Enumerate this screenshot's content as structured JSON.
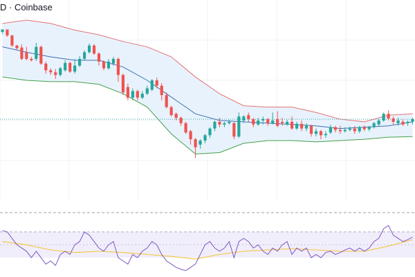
{
  "header": {
    "title_text": "D · Coinbase"
  },
  "colors": {
    "up": "#26a69a",
    "down": "#ef5350",
    "bb_upper": "#e57373",
    "bb_lower": "#43a047",
    "bb_basis": "#3f6fb0",
    "bb_fill": "#e8f2fd",
    "rsi_line": "#7e57c2",
    "rsi_ma": "#f2c94c",
    "rsi_band_fill": "#f1eefb",
    "grid": "#eef0f3"
  },
  "chart_data": [
    {
      "type": "candlestick",
      "title": "",
      "y_range": [
        0,
        300
      ],
      "candles": [
        [
          0,
          252,
          256,
          251,
          249
        ],
        [
          1,
          256,
          247,
          249,
          245
        ],
        [
          2,
          247,
          232,
          248,
          230
        ],
        [
          3,
          232,
          228,
          233,
          226
        ],
        [
          4,
          229,
          212,
          234,
          210
        ],
        [
          5,
          222,
          212,
          230,
          210
        ],
        [
          6,
          212,
          210,
          215,
          208
        ],
        [
          7,
          212,
          230,
          236,
          209
        ],
        [
          8,
          230,
          205,
          232,
          203
        ],
        [
          9,
          205,
          195,
          208,
          190
        ],
        [
          10,
          195,
          192,
          198,
          188
        ],
        [
          11,
          192,
          188,
          197,
          182
        ],
        [
          12,
          188,
          198,
          200,
          186
        ],
        [
          13,
          195,
          206,
          210,
          193
        ],
        [
          14,
          206,
          193,
          208,
          191
        ],
        [
          15,
          193,
          202,
          212,
          190
        ],
        [
          16,
          202,
          212,
          216,
          200
        ],
        [
          17,
          212,
          222,
          225,
          210
        ],
        [
          18,
          222,
          232,
          235,
          220
        ],
        [
          19,
          232,
          220,
          234,
          218
        ],
        [
          20,
          220,
          208,
          222,
          202
        ],
        [
          21,
          208,
          198,
          210,
          195
        ],
        [
          22,
          198,
          208,
          212,
          196
        ],
        [
          23,
          205,
          212,
          215,
          202
        ],
        [
          24,
          212,
          188,
          214,
          178
        ],
        [
          25,
          188,
          162,
          190,
          158
        ],
        [
          26,
          170,
          154,
          175,
          150
        ],
        [
          27,
          154,
          164,
          168,
          150
        ],
        [
          28,
          164,
          154,
          166,
          150
        ],
        [
          29,
          154,
          160,
          164,
          152
        ],
        [
          30,
          160,
          168,
          172,
          158
        ],
        [
          31,
          166,
          180,
          182,
          164
        ],
        [
          32,
          180,
          172,
          184,
          168
        ],
        [
          33,
          172,
          158,
          176,
          150
        ],
        [
          34,
          158,
          140,
          162,
          138
        ],
        [
          35,
          140,
          128,
          142,
          126
        ],
        [
          36,
          130,
          124,
          132,
          120
        ],
        [
          37,
          124,
          116,
          126,
          112
        ],
        [
          38,
          116,
          102,
          118,
          100
        ],
        [
          39,
          104,
          92,
          106,
          84
        ],
        [
          40,
          92,
          80,
          94,
          64
        ],
        [
          41,
          84,
          90,
          92,
          78
        ],
        [
          42,
          90,
          98,
          100,
          86
        ],
        [
          43,
          98,
          108,
          110,
          94
        ],
        [
          44,
          108,
          118,
          120,
          104
        ],
        [
          45,
          118,
          114,
          124,
          110
        ],
        [
          46,
          114,
          116,
          118,
          110
        ],
        [
          47,
          116,
          118,
          121,
          114
        ],
        [
          48,
          116,
          96,
          118,
          92
        ],
        [
          49,
          96,
          126,
          132,
          94
        ],
        [
          50,
          120,
          126,
          128,
          116
        ],
        [
          51,
          128,
          122,
          132,
          118
        ],
        [
          52,
          122,
          114,
          124,
          110
        ],
        [
          53,
          114,
          120,
          124,
          112
        ],
        [
          54,
          120,
          122,
          126,
          114
        ],
        [
          55,
          122,
          116,
          124,
          112
        ],
        [
          56,
          116,
          120,
          132,
          114
        ],
        [
          57,
          122,
          112,
          134,
          110
        ],
        [
          58,
          118,
          116,
          124,
          112
        ],
        [
          59,
          114,
          118,
          121,
          112
        ],
        [
          60,
          118,
          108,
          126,
          106
        ],
        [
          61,
          108,
          115,
          118,
          106
        ],
        [
          62,
          115,
          108,
          120,
          104
        ],
        [
          63,
          108,
          112,
          116,
          104
        ],
        [
          64,
          112,
          100,
          114,
          96
        ],
        [
          65,
          100,
          104,
          108,
          96
        ],
        [
          66,
          104,
          98,
          106,
          92
        ],
        [
          67,
          98,
          100,
          104,
          94
        ],
        [
          68,
          102,
          110,
          114,
          100
        ],
        [
          69,
          110,
          106,
          112,
          102
        ],
        [
          70,
          106,
          104,
          112,
          100
        ],
        [
          71,
          104,
          106,
          110,
          102
        ],
        [
          72,
          106,
          108,
          111,
          104
        ],
        [
          73,
          108,
          104,
          112,
          100
        ],
        [
          74,
          104,
          110,
          112,
          101
        ],
        [
          75,
          110,
          107,
          113,
          104
        ],
        [
          76,
          107,
          110,
          112,
          104
        ],
        [
          77,
          110,
          116,
          118,
          108
        ],
        [
          78,
          114,
          120,
          122,
          112
        ],
        [
          79,
          120,
          130,
          132,
          118
        ],
        [
          80,
          130,
          123,
          135,
          120
        ],
        [
          81,
          123,
          118,
          126,
          114
        ],
        [
          82,
          116,
          120,
          124,
          112
        ],
        [
          83,
          118,
          114,
          122,
          112
        ],
        [
          84,
          116,
          118,
          120,
          112
        ],
        [
          85,
          118,
          122,
          124,
          114
        ]
      ],
      "bollinger": {
        "upper": [
          [
            0,
            265
          ],
          [
            5,
            270
          ],
          [
            10,
            265
          ],
          [
            15,
            255
          ],
          [
            20,
            248
          ],
          [
            25,
            238
          ],
          [
            30,
            230
          ],
          [
            35,
            215
          ],
          [
            40,
            185
          ],
          [
            45,
            160
          ],
          [
            50,
            142
          ],
          [
            55,
            140
          ],
          [
            60,
            140
          ],
          [
            65,
            132
          ],
          [
            70,
            122
          ],
          [
            75,
            118
          ],
          [
            80,
            128
          ],
          [
            85,
            130
          ]
        ],
        "basis": [
          [
            0,
            230
          ],
          [
            5,
            222
          ],
          [
            10,
            215
          ],
          [
            15,
            210
          ],
          [
            20,
            210
          ],
          [
            25,
            200
          ],
          [
            30,
            180
          ],
          [
            35,
            155
          ],
          [
            40,
            130
          ],
          [
            45,
            120
          ],
          [
            50,
            118
          ],
          [
            55,
            116
          ],
          [
            60,
            114
          ],
          [
            65,
            112
          ],
          [
            70,
            108
          ],
          [
            75,
            110
          ],
          [
            80,
            112
          ],
          [
            85,
            118
          ]
        ],
        "lower": [
          [
            0,
            185
          ],
          [
            5,
            180
          ],
          [
            10,
            178
          ],
          [
            15,
            178
          ],
          [
            20,
            174
          ],
          [
            25,
            160
          ],
          [
            30,
            140
          ],
          [
            35,
            100
          ],
          [
            40,
            70
          ],
          [
            45,
            72
          ],
          [
            50,
            86
          ],
          [
            55,
            90
          ],
          [
            60,
            90
          ],
          [
            65,
            88
          ],
          [
            70,
            90
          ],
          [
            75,
            92
          ],
          [
            80,
            95
          ],
          [
            85,
            96
          ]
        ]
      }
    },
    {
      "type": "line",
      "title": "",
      "y_range": [
        0,
        100
      ],
      "bands": [
        30,
        70
      ],
      "series": [
        {
          "values": [
            [
              0,
              72
            ],
            [
              1,
              70
            ],
            [
              2,
              60
            ],
            [
              3,
              50
            ],
            [
              4,
              45
            ],
            [
              5,
              40
            ],
            [
              6,
              30
            ],
            [
              7,
              40
            ],
            [
              8,
              30
            ],
            [
              9,
              20
            ],
            [
              10,
              25
            ],
            [
              11,
              18
            ],
            [
              12,
              35
            ],
            [
              13,
              40
            ],
            [
              14,
              35
            ],
            [
              15,
              50
            ],
            [
              16,
              55
            ],
            [
              17,
              70
            ],
            [
              18,
              65
            ],
            [
              19,
              55
            ],
            [
              20,
              45
            ],
            [
              21,
              40
            ],
            [
              22,
              50
            ],
            [
              23,
              55
            ],
            [
              24,
              30
            ],
            [
              25,
              25
            ],
            [
              26,
              20
            ],
            [
              27,
              35
            ],
            [
              28,
              30
            ],
            [
              29,
              40
            ],
            [
              30,
              45
            ],
            [
              31,
              55
            ],
            [
              32,
              50
            ],
            [
              33,
              35
            ],
            [
              34,
              25
            ],
            [
              35,
              20
            ],
            [
              36,
              15
            ],
            [
              37,
              12
            ],
            [
              38,
              10
            ],
            [
              39,
              15
            ],
            [
              40,
              20
            ],
            [
              41,
              35
            ],
            [
              42,
              50
            ],
            [
              43,
              55
            ],
            [
              44,
              45
            ],
            [
              45,
              40
            ],
            [
              46,
              45
            ],
            [
              47,
              55
            ],
            [
              48,
              30
            ],
            [
              49,
              55
            ],
            [
              50,
              60
            ],
            [
              51,
              55
            ],
            [
              52,
              45
            ],
            [
              53,
              50
            ],
            [
              54,
              40
            ],
            [
              55,
              35
            ],
            [
              56,
              45
            ],
            [
              57,
              40
            ],
            [
              58,
              50
            ],
            [
              59,
              55
            ],
            [
              60,
              35
            ],
            [
              61,
              45
            ],
            [
              62,
              40
            ],
            [
              63,
              45
            ],
            [
              64,
              30
            ],
            [
              65,
              35
            ],
            [
              66,
              30
            ],
            [
              67,
              38
            ],
            [
              68,
              40
            ],
            [
              69,
              35
            ],
            [
              70,
              38
            ],
            [
              71,
              42
            ],
            [
              72,
              45
            ],
            [
              73,
              40
            ],
            [
              74,
              45
            ],
            [
              75,
              40
            ],
            [
              76,
              45
            ],
            [
              77,
              55
            ],
            [
              78,
              60
            ],
            [
              79,
              75
            ],
            [
              80,
              80
            ],
            [
              81,
              65
            ],
            [
              82,
              60
            ],
            [
              83,
              55
            ],
            [
              84,
              58
            ],
            [
              85,
              62
            ]
          ]
        },
        {
          "values": [
            [
              0,
              55
            ],
            [
              5,
              50
            ],
            [
              10,
              42
            ],
            [
              15,
              38
            ],
            [
              20,
              40
            ],
            [
              25,
              38
            ],
            [
              30,
              35
            ],
            [
              35,
              32
            ],
            [
              40,
              28
            ],
            [
              45,
              35
            ],
            [
              50,
              40
            ],
            [
              55,
              42
            ],
            [
              60,
              44
            ],
            [
              65,
              42
            ],
            [
              70,
              40
            ],
            [
              75,
              40
            ],
            [
              80,
              48
            ],
            [
              85,
              58
            ]
          ]
        }
      ]
    }
  ]
}
